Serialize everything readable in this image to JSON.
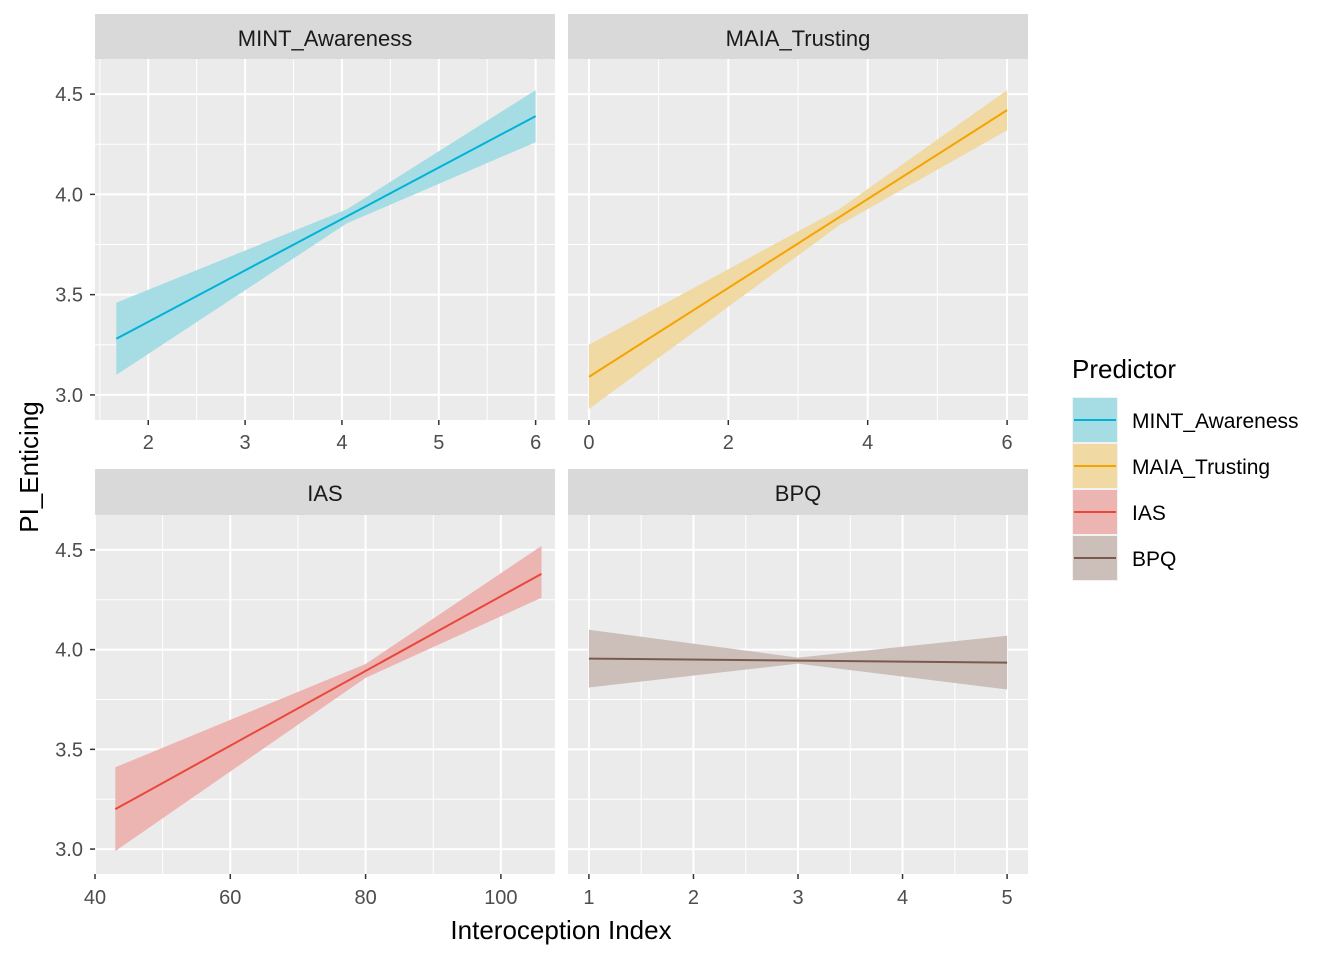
{
  "chart_data": {
    "type": "line",
    "ylabel": "PI_Enticing",
    "xlabel": "Interoception Index",
    "ylim": [
      2.875,
      4.675
    ],
    "y_ticks": [
      3.0,
      3.5,
      4.0,
      4.5
    ],
    "y_tick_labels": [
      "3.0",
      "3.5",
      "4.0",
      "4.5"
    ],
    "legend": {
      "title": "Predictor",
      "position": "right",
      "entries": [
        {
          "label": "MINT_Awareness",
          "line_color": "#00B2D6",
          "fill_color": "#A6DDE5"
        },
        {
          "label": "MAIA_Trusting",
          "line_color": "#F5A300",
          "fill_color": "#F0D9A3"
        },
        {
          "label": "IAS",
          "line_color": "#E8473A",
          "fill_color": "#EDB5B2"
        },
        {
          "label": "BPQ",
          "line_color": "#7A5A4E",
          "fill_color": "#CCBFBA"
        }
      ]
    },
    "panels": [
      {
        "title": "MINT_Awareness",
        "line_color": "#00B2D6",
        "fill_color": "#A6DDE5",
        "xlim": [
          1.45,
          6.2
        ],
        "x_ticks": [
          2,
          3,
          4,
          5,
          6
        ],
        "x_tick_labels": [
          "2",
          "3",
          "4",
          "5",
          "6"
        ],
        "x": [
          1.67,
          6.0
        ],
        "y": [
          3.28,
          4.39
        ],
        "lower": [
          3.1,
          4.26
        ],
        "upper": [
          3.46,
          4.52
        ],
        "band_center_x": 4.05,
        "band_center_half_width": 0.035
      },
      {
        "title": "MAIA_Trusting",
        "line_color": "#F5A300",
        "fill_color": "#F0D9A3",
        "xlim": [
          -0.3,
          6.3
        ],
        "x_ticks": [
          0,
          2,
          4,
          6
        ],
        "x_tick_labels": [
          "0",
          "2",
          "4",
          "6"
        ],
        "x": [
          0,
          6
        ],
        "y": [
          3.09,
          4.42
        ],
        "lower": [
          2.93,
          4.32
        ],
        "upper": [
          3.25,
          4.52
        ],
        "band_center_x": 3.6,
        "band_center_half_width": 0.04
      },
      {
        "title": "IAS",
        "line_color": "#E8473A",
        "fill_color": "#EDB5B2",
        "xlim": [
          40,
          108
        ],
        "x_ticks": [
          40,
          60,
          80,
          100
        ],
        "x_tick_labels": [
          "40",
          "60",
          "80",
          "100"
        ],
        "x": [
          43,
          106
        ],
        "y": [
          3.2,
          4.38
        ],
        "lower": [
          2.99,
          4.26
        ],
        "upper": [
          3.41,
          4.52
        ],
        "band_center_x": 80,
        "band_center_half_width": 0.035
      },
      {
        "title": "BPQ",
        "line_color": "#7A5A4E",
        "fill_color": "#CCBFBA",
        "xlim": [
          0.8,
          5.2
        ],
        "x_ticks": [
          1,
          2,
          3,
          4,
          5
        ],
        "x_tick_labels": [
          "1",
          "2",
          "3",
          "4",
          "5"
        ],
        "x": [
          1,
          5
        ],
        "y": [
          3.955,
          3.935
        ],
        "lower": [
          3.81,
          3.8
        ],
        "upper": [
          4.1,
          4.07
        ],
        "band_center_x": 3.0,
        "band_center_half_width": 0.015
      }
    ]
  }
}
